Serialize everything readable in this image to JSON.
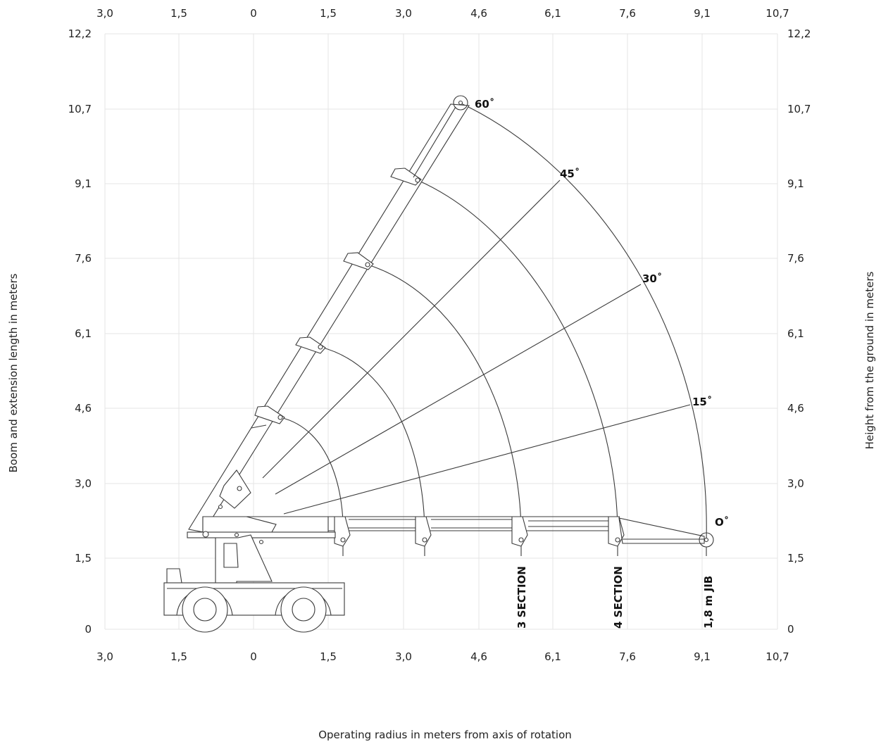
{
  "chart_data": {
    "type": "diagram",
    "x_ticks": [
      "3,0",
      "1,5",
      "0",
      "1,5",
      "3,0",
      "4,6",
      "6,1",
      "7,6",
      "9,1",
      "10,7"
    ],
    "y_ticks": [
      "0",
      "1,5",
      "3,0",
      "4,6",
      "6,1",
      "7,6",
      "9,1",
      "10,7",
      "12,2"
    ],
    "xlabel": "Operating radius in meters from axis of rotation",
    "ylabel_left": "Boom and extension length in meters",
    "ylabel_right": "Height from the ground in meters",
    "angle_labels": [
      "60˚",
      "45˚",
      "30˚",
      "15˚",
      "O˚"
    ],
    "section_labels": [
      "3 SECTION",
      "4 SECTION",
      "1,8 m JIB"
    ],
    "grid": true
  }
}
